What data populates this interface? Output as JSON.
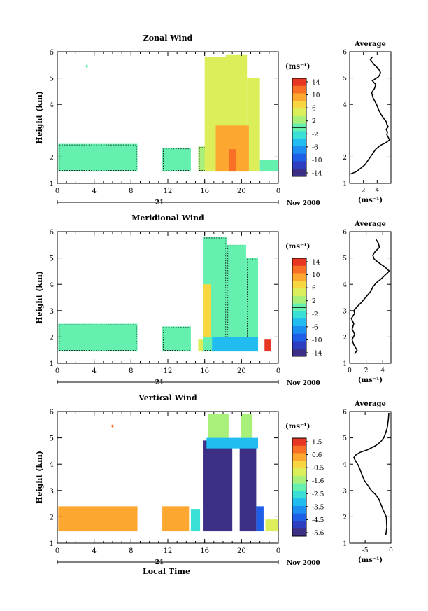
{
  "figure": {
    "shared_xlabel": "Local Time",
    "day_label": "21",
    "month_year_label": "Nov 2000"
  },
  "chart_data": [
    {
      "type": "heatmap",
      "title": "Zonal Wind",
      "ylabel": "Height (km)",
      "xlim": [
        0,
        24
      ],
      "ylim": [
        1,
        6
      ],
      "xticks": [
        "0",
        "4",
        "8",
        "12",
        "16",
        "20",
        "0"
      ],
      "xtick_values": [
        0,
        4,
        8,
        12,
        16,
        20,
        24
      ],
      "yticks": [
        "1",
        "2",
        "4",
        "5",
        "6"
      ],
      "ytick_values": [
        1,
        2,
        4,
        5,
        6
      ],
      "colorbar": {
        "unit": "(ms⁻¹)",
        "labels": [
          "14",
          "10",
          "6",
          "2",
          "-2",
          "-6",
          "-10",
          "-14"
        ],
        "values": [
          14,
          10,
          6,
          2,
          -2,
          -6,
          -10,
          -14
        ],
        "zero_line": 0
      },
      "regions": [
        {
          "x": [
            0.1,
            8.7
          ],
          "y": [
            1.45,
            2.5
          ],
          "value": -1,
          "contour": 0
        },
        {
          "x": [
            11.4,
            14.5
          ],
          "y": [
            1.45,
            2.35
          ],
          "value": -1,
          "contour": 0
        },
        {
          "x": [
            15.3,
            17.0
          ],
          "y": [
            1.45,
            2.4
          ],
          "value": 2,
          "contour": 0
        },
        {
          "x": [
            16.0,
            18.5
          ],
          "y": [
            1.45,
            5.8
          ],
          "value": 4
        },
        {
          "x": [
            18.3,
            20.6
          ],
          "y": [
            1.45,
            5.9
          ],
          "value": 5
        },
        {
          "x": [
            20.6,
            22.0
          ],
          "y": [
            1.45,
            5.0
          ],
          "value": 4
        },
        {
          "x": [
            17.2,
            20.8
          ],
          "y": [
            1.45,
            3.2
          ],
          "value": 9
        },
        {
          "x": [
            18.6,
            19.4
          ],
          "y": [
            1.45,
            2.3
          ],
          "value": 11
        },
        {
          "x": [
            22.0,
            24.0
          ],
          "y": [
            1.45,
            1.9
          ],
          "value": 0
        },
        {
          "x": [
            3.1,
            3.3
          ],
          "y": [
            5.4,
            5.5
          ],
          "value": -1
        }
      ],
      "average": {
        "title": "Average",
        "xlabel": "(ms⁻¹)",
        "xlim": [
          0,
          6
        ],
        "ylim": [
          1,
          6
        ],
        "xticks": [
          "2",
          "4"
        ],
        "xtick_values": [
          2,
          4
        ],
        "x": [
          0.1,
          1.0,
          2.2,
          3.0,
          3.8,
          4.5,
          5.3,
          5.8,
          5.6,
          5.4,
          5.5,
          5.3,
          5.6,
          5.4,
          5.3,
          5.0,
          4.6,
          4.2,
          3.9,
          3.4,
          3.2,
          3.6,
          3.8,
          3.3,
          4.2,
          4.5,
          4.2,
          3.6,
          3.3,
          3.0,
          3.3
        ],
        "y": [
          1.35,
          1.45,
          1.7,
          2.0,
          2.3,
          2.45,
          2.55,
          2.65,
          2.75,
          2.85,
          2.95,
          3.05,
          3.15,
          3.25,
          3.35,
          3.45,
          3.6,
          3.8,
          4.0,
          4.25,
          4.45,
          4.6,
          4.75,
          4.9,
          5.05,
          5.2,
          5.35,
          5.5,
          5.6,
          5.7,
          5.8
        ]
      }
    },
    {
      "type": "heatmap",
      "title": "Meridional Wind",
      "ylabel": "Height (km)",
      "xlim": [
        0,
        24
      ],
      "ylim": [
        1,
        6
      ],
      "xticks": [
        "0",
        "4",
        "8",
        "12",
        "16",
        "20",
        "0"
      ],
      "xtick_values": [
        0,
        4,
        8,
        12,
        16,
        20,
        24
      ],
      "yticks": [
        "1",
        "2",
        "3",
        "4",
        "5",
        "6"
      ],
      "ytick_values": [
        1,
        2,
        3,
        4,
        5,
        6
      ],
      "colorbar": {
        "unit": "(ms⁻¹)",
        "labels": [
          "14",
          "10",
          "6",
          "2",
          "-2",
          "-6",
          "-10",
          "-14"
        ],
        "values": [
          14,
          10,
          6,
          2,
          -2,
          -6,
          -10,
          -14
        ],
        "zero_line": 0
      },
      "regions": [
        {
          "x": [
            0.1,
            8.7
          ],
          "y": [
            1.45,
            2.5
          ],
          "value": -1,
          "contour": 0
        },
        {
          "x": [
            11.4,
            14.5
          ],
          "y": [
            1.45,
            2.4
          ],
          "value": -1,
          "contour": 0
        },
        {
          "x": [
            15.3,
            16.0
          ],
          "y": [
            1.45,
            1.9
          ],
          "value": 5
        },
        {
          "x": [
            15.8,
            18.4
          ],
          "y": [
            1.45,
            5.8
          ],
          "value": 1,
          "contour": 0
        },
        {
          "x": [
            18.4,
            20.5
          ],
          "y": [
            1.45,
            5.5
          ],
          "value": 0,
          "contour": 0
        },
        {
          "x": [
            20.5,
            21.8
          ],
          "y": [
            1.45,
            5.0
          ],
          "value": 1,
          "contour": 0
        },
        {
          "x": [
            16.8,
            21.8
          ],
          "y": [
            1.45,
            2.0
          ],
          "value": -4
        },
        {
          "x": [
            15.8,
            16.7
          ],
          "y": [
            2.0,
            4.0
          ],
          "value": 7
        },
        {
          "x": [
            22.5,
            23.2
          ],
          "y": [
            1.45,
            1.9
          ],
          "value": 12
        }
      ],
      "average": {
        "title": "Average",
        "xlabel": "(ms⁻¹)",
        "xlim": [
          0,
          5
        ],
        "ylim": [
          1,
          6
        ],
        "xticks": [
          "0",
          "2",
          "4"
        ],
        "xtick_values": [
          0,
          2,
          4
        ],
        "x": [
          0.6,
          0.9,
          0.5,
          0.3,
          0.6,
          0.3,
          0.5,
          0.2,
          0.6,
          0.5,
          0.9,
          1.4,
          1.8,
          2.2,
          2.6,
          2.8,
          3.2,
          3.8,
          4.3,
          4.8,
          4.3,
          3.6,
          3.0,
          2.8,
          3.1,
          3.6,
          3.5,
          3.2
        ],
        "y": [
          1.35,
          1.5,
          1.7,
          1.9,
          2.1,
          2.3,
          2.5,
          2.7,
          2.9,
          3.0,
          3.15,
          3.3,
          3.45,
          3.6,
          3.75,
          3.9,
          4.05,
          4.2,
          4.35,
          4.5,
          4.65,
          4.8,
          4.95,
          5.1,
          5.25,
          5.4,
          5.55,
          5.7
        ]
      }
    },
    {
      "type": "heatmap",
      "title": "Vertical Wind",
      "ylabel": "Height (km)",
      "xlim": [
        0,
        24
      ],
      "ylim": [
        1,
        6
      ],
      "xticks": [
        "0",
        "4",
        "8",
        "12",
        "16",
        "20",
        "0"
      ],
      "xtick_values": [
        0,
        4,
        8,
        12,
        16,
        20,
        24
      ],
      "yticks": [
        "1",
        "2",
        "3",
        "4",
        "5",
        "6"
      ],
      "ytick_values": [
        1,
        2,
        3,
        4,
        5,
        6
      ],
      "colorbar": {
        "unit": "(ms⁻¹)",
        "labels": [
          "1.5",
          "0.6",
          "-0.5",
          "-1.6",
          "-2.5",
          "-3.5",
          "-4.5",
          "-5.6"
        ],
        "values": [
          1.5,
          0.6,
          -0.5,
          -1.6,
          -2.5,
          -3.5,
          -4.5,
          -5.6
        ]
      },
      "regions": [
        {
          "x": [
            0.1,
            8.7
          ],
          "y": [
            1.45,
            2.4
          ],
          "value": 0.2
        },
        {
          "x": [
            11.4,
            14.3
          ],
          "y": [
            1.45,
            2.4
          ],
          "value": 0.2
        },
        {
          "x": [
            14.5,
            15.5
          ],
          "y": [
            1.45,
            2.3
          ],
          "value": -2.5
        },
        {
          "x": [
            15.8,
            19.0
          ],
          "y": [
            1.45,
            4.9
          ],
          "value": -5.6
        },
        {
          "x": [
            19.8,
            21.6
          ],
          "y": [
            1.45,
            4.7
          ],
          "value": -5.6
        },
        {
          "x": [
            16.4,
            18.6
          ],
          "y": [
            4.9,
            5.9
          ],
          "value": -1.6
        },
        {
          "x": [
            19.9,
            21.2
          ],
          "y": [
            4.7,
            5.9
          ],
          "value": -1.6
        },
        {
          "x": [
            16.2,
            21.8
          ],
          "y": [
            4.6,
            5.0
          ],
          "value": -3.0
        },
        {
          "x": [
            21.6,
            22.4
          ],
          "y": [
            1.45,
            2.4
          ],
          "value": -4.0
        },
        {
          "x": [
            22.6,
            24.0
          ],
          "y": [
            1.45,
            1.9
          ],
          "value": -1.0
        },
        {
          "x": [
            5.9,
            6.1
          ],
          "y": [
            5.4,
            5.5
          ],
          "value": 0.6
        }
      ],
      "average": {
        "title": "Average",
        "xlabel": "(ms⁻¹)",
        "xlim": [
          -8,
          0
        ],
        "ylim": [
          1,
          6
        ],
        "xticks": [
          "-5",
          "0"
        ],
        "xtick_values": [
          -5,
          0
        ],
        "x": [
          -1.0,
          -0.8,
          -0.9,
          -1.6,
          -2.0,
          -2.4,
          -3.0,
          -3.8,
          -4.5,
          -5.2,
          -5.6,
          -5.8,
          -6.0,
          -6.3,
          -6.8,
          -7.2,
          -6.8,
          -6.0,
          -4.5,
          -3.0,
          -2.0,
          -1.4,
          -1.0,
          -0.7,
          -0.5,
          -0.4
        ],
        "y": [
          1.3,
          1.6,
          2.0,
          2.3,
          2.5,
          2.7,
          2.85,
          3.0,
          3.2,
          3.4,
          3.6,
          3.7,
          3.8,
          3.95,
          4.1,
          4.25,
          4.35,
          4.45,
          4.55,
          4.7,
          4.85,
          5.0,
          5.2,
          5.4,
          5.7,
          5.95
        ]
      }
    }
  ]
}
